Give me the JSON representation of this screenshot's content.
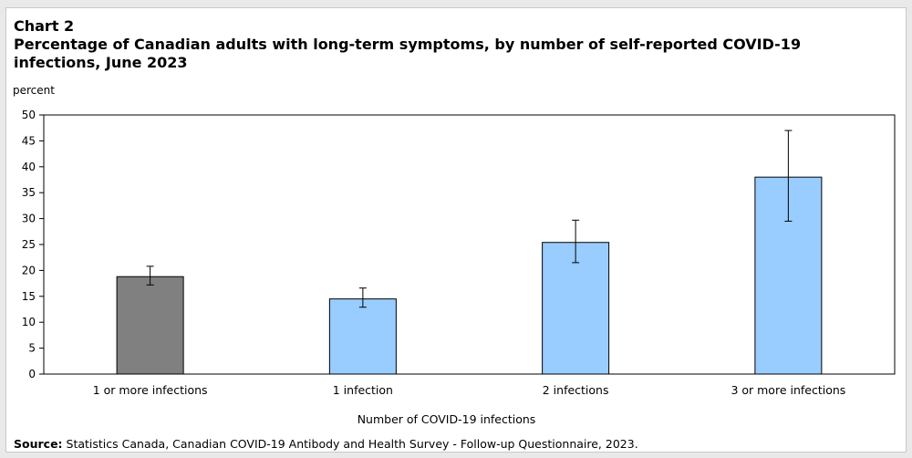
{
  "chart_label": "Chart 2",
  "chart_title": "Percentage of Canadian adults with long-term symptoms, by number of self-reported COVID-19 infections, June 2023",
  "source_label": "Source:",
  "source_text": " Statistics Canada, Canadian COVID-19 Antibody and Health Survey - Follow-up Questionnaire, 2023.",
  "chart_data": {
    "type": "bar",
    "title": "Percentage of Canadian adults with long-term symptoms, by number of self-reported COVID-19 infections, June 2023",
    "ylabel": "percent",
    "xlabel": "Number of COVID-19 infections",
    "ylim": [
      0,
      50
    ],
    "yticks": [
      0,
      5,
      10,
      15,
      20,
      25,
      30,
      35,
      40,
      45,
      50
    ],
    "categories": [
      "1 or more infections",
      "1 infection",
      "2 infections",
      "3 or more infections"
    ],
    "values": [
      18.8,
      14.5,
      25.4,
      38.0
    ],
    "error_low": [
      17.2,
      12.9,
      21.5,
      29.5
    ],
    "error_high": [
      20.8,
      16.6,
      29.7,
      47.0
    ],
    "bar_colors": [
      "#808080",
      "#99ccff",
      "#99ccff",
      "#99ccff"
    ],
    "grid": false,
    "legend": "none"
  }
}
